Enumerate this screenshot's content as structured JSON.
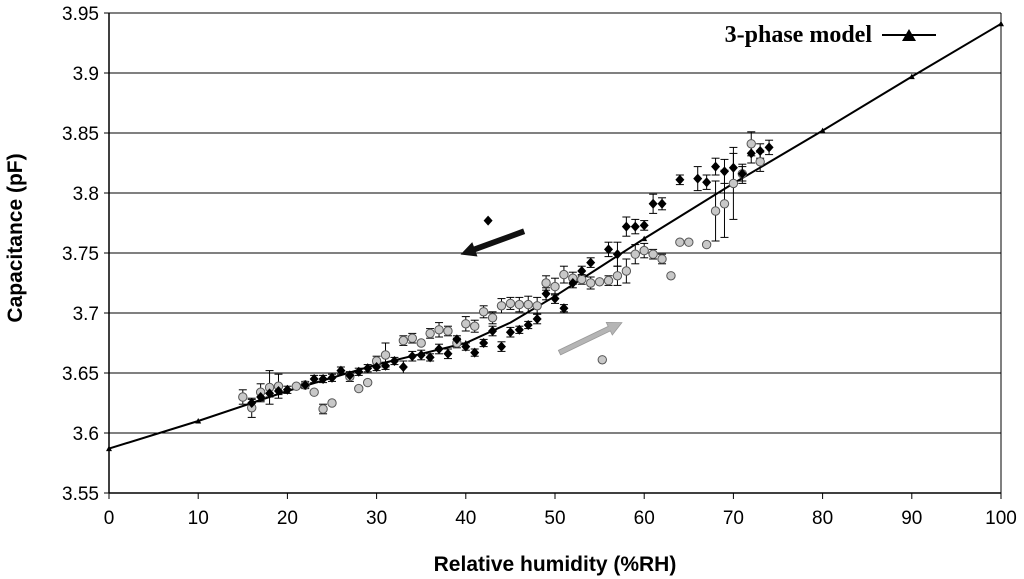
{
  "chart_data": {
    "type": "scatter",
    "xlabel": "Relative humidity (%RH)",
    "ylabel": "Capacitance (pF)",
    "xlim": [
      0,
      100
    ],
    "ylim": [
      3.55,
      3.95
    ],
    "xticks": [
      0,
      10,
      20,
      30,
      40,
      50,
      60,
      70,
      80,
      90,
      100
    ],
    "xtick_labels": [
      "0",
      "10",
      "20",
      "30",
      "40",
      "50",
      "60",
      "70",
      "80",
      "90",
      "100"
    ],
    "yticks": [
      3.55,
      3.6,
      3.65,
      3.7,
      3.75,
      3.8,
      3.85,
      3.9,
      3.95
    ],
    "ytick_labels": [
      "3.55",
      "3.6",
      "3.65",
      "3.7",
      "3.75",
      "3.8",
      "3.85",
      "3.9",
      "3.95"
    ],
    "grid": "horizontal",
    "legend_position": "top-right",
    "series": [
      {
        "name": "3-phase model",
        "kind": "line",
        "color": "#000000",
        "x": [
          0,
          10,
          20,
          30,
          35,
          40,
          45,
          50,
          55,
          60,
          70,
          80,
          90,
          100
        ],
        "y": [
          3.587,
          3.61,
          3.635,
          3.657,
          3.666,
          3.675,
          3.692,
          3.714,
          3.738,
          3.762,
          3.808,
          3.852,
          3.897,
          3.941
        ]
      },
      {
        "kind": "scatter",
        "marker": "diamond",
        "color": "#000000",
        "points": [
          [
            16,
            3.625
          ],
          [
            17,
            3.63
          ],
          [
            18,
            3.633
          ],
          [
            19,
            3.635
          ],
          [
            20,
            3.636
          ],
          [
            22,
            3.64
          ],
          [
            23,
            3.645
          ],
          [
            24,
            3.645
          ],
          [
            25,
            3.646
          ],
          [
            26,
            3.652
          ],
          [
            27,
            3.648
          ],
          [
            28,
            3.651
          ],
          [
            29,
            3.654
          ],
          [
            30,
            3.655
          ],
          [
            31,
            3.656
          ],
          [
            32,
            3.66
          ],
          [
            33,
            3.655
          ],
          [
            34,
            3.664
          ],
          [
            35,
            3.665
          ],
          [
            36,
            3.663
          ],
          [
            37,
            3.67
          ],
          [
            38,
            3.666
          ],
          [
            39,
            3.678
          ],
          [
            40,
            3.672
          ],
          [
            41,
            3.667
          ],
          [
            42,
            3.675
          ],
          [
            43,
            3.685
          ],
          [
            44,
            3.672
          ],
          [
            45,
            3.684
          ],
          [
            46,
            3.686
          ],
          [
            47,
            3.69
          ],
          [
            48,
            3.695
          ],
          [
            49,
            3.716
          ],
          [
            50,
            3.712
          ],
          [
            51,
            3.704
          ],
          [
            52,
            3.725
          ],
          [
            53,
            3.735
          ],
          [
            54,
            3.742
          ],
          [
            56,
            3.753
          ],
          [
            57,
            3.749
          ],
          [
            58,
            3.772
          ],
          [
            59,
            3.772
          ],
          [
            60,
            3.773
          ],
          [
            61,
            3.791
          ],
          [
            62,
            3.791
          ],
          [
            64,
            3.811
          ],
          [
            66,
            3.812
          ],
          [
            67,
            3.809
          ],
          [
            68,
            3.822
          ],
          [
            69,
            3.818
          ],
          [
            70,
            3.821
          ],
          [
            71,
            3.816
          ],
          [
            72,
            3.833
          ],
          [
            73,
            3.835
          ],
          [
            74,
            3.838
          ],
          [
            42.5,
            3.777
          ]
        ],
        "error": [
          0.003,
          0.004,
          0.003,
          0.003,
          0.003,
          0.003,
          0.003,
          0.003,
          0.003,
          0.003,
          0.003,
          0.003,
          0.003,
          0.003,
          0.003,
          0.003,
          0.005,
          0.004,
          0.004,
          0.003,
          0.004,
          0.004,
          0.003,
          0.003,
          0.003,
          0.003,
          0.004,
          0.004,
          0.004,
          0.003,
          0.003,
          0.004,
          0.005,
          0.004,
          0.003,
          0.004,
          0.004,
          0.004,
          0.006,
          0.01,
          0.008,
          0.006,
          0.004,
          0.008,
          0.005,
          0.004,
          0.01,
          0.006,
          0.007,
          0.01,
          0.012,
          0.006,
          0.008,
          0.006,
          0.006,
          0
        ]
      },
      {
        "kind": "scatter",
        "marker": "circle",
        "color": "#c8c8c8",
        "points": [
          [
            15,
            3.63
          ],
          [
            16,
            3.621
          ],
          [
            17,
            3.634
          ],
          [
            18,
            3.638
          ],
          [
            19,
            3.639
          ],
          [
            21,
            3.639
          ],
          [
            22,
            3.64
          ],
          [
            23,
            3.634
          ],
          [
            24,
            3.62
          ],
          [
            25,
            3.625
          ],
          [
            27,
            3.647
          ],
          [
            28,
            3.637
          ],
          [
            29,
            3.642
          ],
          [
            30,
            3.66
          ],
          [
            31,
            3.665
          ],
          [
            33,
            3.677
          ],
          [
            34,
            3.679
          ],
          [
            35,
            3.675
          ],
          [
            36,
            3.683
          ],
          [
            37,
            3.686
          ],
          [
            38,
            3.685
          ],
          [
            39,
            3.675
          ],
          [
            40,
            3.691
          ],
          [
            41,
            3.689
          ],
          [
            42,
            3.701
          ],
          [
            43,
            3.696
          ],
          [
            44,
            3.706
          ],
          [
            45,
            3.708
          ],
          [
            46,
            3.707
          ],
          [
            47,
            3.707
          ],
          [
            48,
            3.706
          ],
          [
            49,
            3.725
          ],
          [
            50,
            3.722
          ],
          [
            51,
            3.732
          ],
          [
            52,
            3.729
          ],
          [
            53,
            3.728
          ],
          [
            54,
            3.725
          ],
          [
            55,
            3.726
          ],
          [
            56,
            3.727
          ],
          [
            57,
            3.731
          ],
          [
            58,
            3.735
          ],
          [
            59,
            3.749
          ],
          [
            60,
            3.752
          ],
          [
            61,
            3.749
          ],
          [
            62,
            3.745
          ],
          [
            63,
            3.731
          ],
          [
            64,
            3.759
          ],
          [
            65,
            3.759
          ],
          [
            67,
            3.757
          ],
          [
            68,
            3.785
          ],
          [
            69,
            3.791
          ],
          [
            70,
            3.808
          ],
          [
            71,
            3.816
          ],
          [
            72,
            3.841
          ],
          [
            73,
            3.826
          ],
          [
            55.3,
            3.661
          ]
        ],
        "error": [
          0.006,
          0.008,
          0.007,
          0.014,
          0.01,
          0,
          0,
          0,
          0.004,
          0,
          0.004,
          0,
          0,
          0.004,
          0.01,
          0.004,
          0.004,
          0,
          0.004,
          0.006,
          0.004,
          0.004,
          0.006,
          0.005,
          0.005,
          0.005,
          0.006,
          0.005,
          0.006,
          0.007,
          0.007,
          0.006,
          0.007,
          0.007,
          0.005,
          0.004,
          0.005,
          0,
          0.004,
          0.008,
          0.01,
          0.008,
          0.006,
          0.004,
          0.004,
          0,
          0,
          0,
          0,
          0.025,
          0.028,
          0.03,
          0.008,
          0.01,
          0.008,
          0
        ]
      }
    ],
    "annotations": [
      {
        "type": "arrow",
        "color": "#111111",
        "from": [
          46.5,
          3.768
        ],
        "to": [
          39.5,
          3.749
        ]
      },
      {
        "type": "arrow",
        "color": "#b5b5b5",
        "from": [
          50.5,
          3.667
        ],
        "to": [
          57.5,
          3.692
        ]
      }
    ]
  }
}
